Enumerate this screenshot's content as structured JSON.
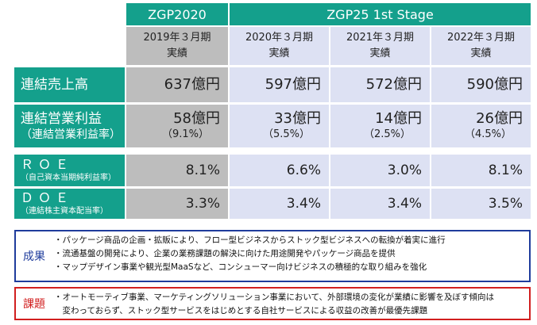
{
  "header": {
    "zgp2020": "ZGP2020",
    "zgp25": "ZGP25 1st Stage"
  },
  "periods": [
    {
      "year": "2019年３月期",
      "note": "実績"
    },
    {
      "year": "2020年３月期",
      "note": "実績"
    },
    {
      "year": "2021年３月期",
      "note": "実績"
    },
    {
      "year": "2022年３月期",
      "note": "実績"
    }
  ],
  "rows": {
    "sales": {
      "label": "連結売上高",
      "values": [
        "637億円",
        "597億円",
        "572億円",
        "590億円"
      ]
    },
    "op_income": {
      "label": "連結営業利益",
      "sub_label": "（連結営業利益率）",
      "values": [
        "58億円",
        "33億円",
        "14億円",
        "26億円"
      ],
      "rates": [
        "（9.1%）",
        "（5.5%）",
        "（2.5%）",
        "（4.5%）"
      ]
    },
    "roe": {
      "label": "ＲＯＥ",
      "sub_label": "（自己資本当期純利益率）",
      "values": [
        "8.1%",
        "6.6%",
        "3.0%",
        "8.1%"
      ]
    },
    "doe": {
      "label": "ＤＯＥ",
      "sub_label": "（連結株主資本配当率）",
      "values": [
        "3.3%",
        "3.4%",
        "3.4%",
        "3.5%"
      ]
    }
  },
  "results": {
    "label": "成果",
    "color": "#1f3c9c",
    "lines": [
      "・パッケージ商品の企画・拡販により、フロー型ビジネスからストック型ビジネスへの転換が着実に進行",
      "・流通基盤の開発により、企業の業務課題の解決に向けた用途開発やパッケージ商品を提供",
      "・マップデザイン事業や観光型MaaSなど、コンシューマー向けビジネスの積極的な取り組みを強化"
    ]
  },
  "issues": {
    "label": "課題",
    "color": "#d11f1f",
    "lines": [
      "・オートモーティブ事業、マーケティングソリューション事業において、外部環境の変化が業績に影響を及ぼす傾向は",
      "　変わっておらず、ストック型サービスをはじめとする自社サービスによる収益の改善が最優先課題"
    ]
  },
  "colors": {
    "teal": "#14a08c",
    "gray": "#bdbdbd",
    "lightblue": "#dde1f3"
  }
}
